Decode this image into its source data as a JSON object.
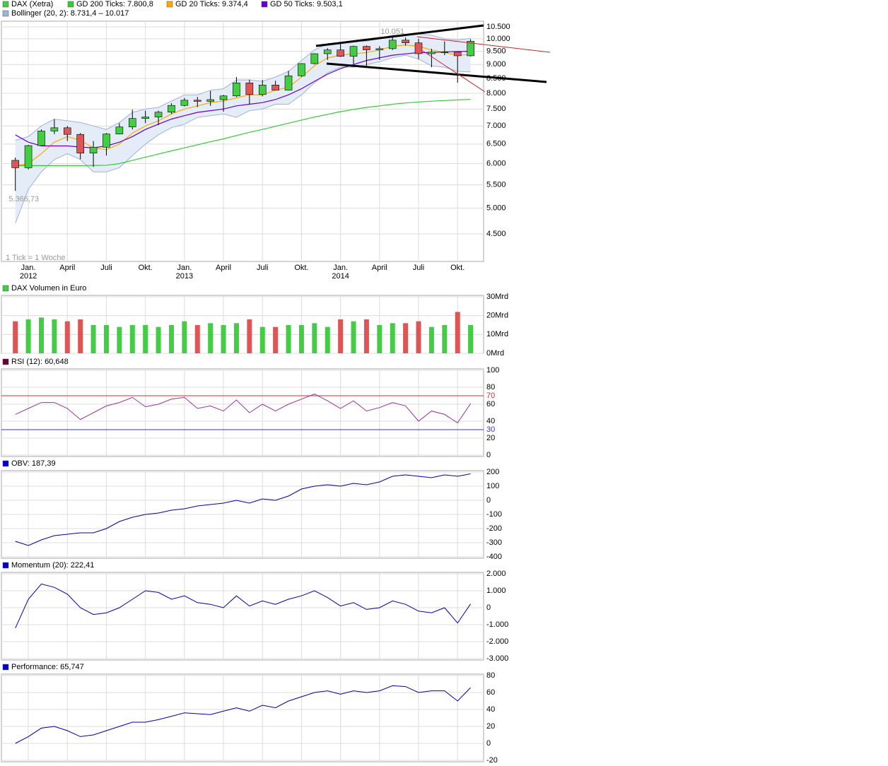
{
  "chart_data": [
    {
      "type": "candlestick",
      "name": "DAX (Xetra)",
      "up_color": "#44cc44",
      "down_color": "#dd5555",
      "categories": [
        null,
        "Jan.",
        null,
        null,
        "April",
        null,
        null,
        "Juli",
        null,
        null,
        "Okt.",
        null,
        null,
        "Jan.",
        null,
        null,
        "April",
        null,
        null,
        "Juli",
        null,
        null,
        "Okt.",
        null,
        null,
        "Jan.",
        null,
        null,
        "April",
        null,
        null,
        "Juli",
        null,
        null,
        "Okt.",
        null
      ],
      "x_sublabels": [
        null,
        "2012",
        null,
        null,
        null,
        null,
        null,
        null,
        null,
        null,
        null,
        null,
        null,
        "2013",
        null,
        null,
        null,
        null,
        null,
        null,
        null,
        null,
        null,
        null,
        null,
        "2014",
        null,
        null,
        null,
        null,
        null,
        null,
        null,
        null,
        null,
        null
      ],
      "xlim": [
        -1.07,
        36
      ],
      "ylim": [
        4020,
        10745
      ],
      "log_scale": true,
      "grid": true,
      "yticks": [
        {
          "value": 10500,
          "label": "10.500"
        },
        {
          "value": 10000,
          "label": "10.000"
        },
        {
          "value": 9500,
          "label": "9.500"
        },
        {
          "value": 9000,
          "label": "9.000"
        },
        {
          "value": 8500,
          "label": "8.500"
        },
        {
          "value": 8000,
          "label": "8.000"
        },
        {
          "value": 7500,
          "label": "7.500"
        },
        {
          "value": 7000,
          "label": "7.000"
        },
        {
          "value": 6500,
          "label": "6.500"
        },
        {
          "value": 6000,
          "label": "6.000"
        },
        {
          "value": 5500,
          "label": "5.500"
        },
        {
          "value": 5000,
          "label": "5.000"
        },
        {
          "value": 4500,
          "label": "4.500"
        }
      ],
      "open": [
        6080,
        5898,
        6458,
        6856,
        6947,
        6761,
        6264,
        6416,
        6772,
        6971,
        7216,
        7260,
        7405,
        7612,
        7776,
        7741,
        7795,
        7914,
        8348,
        7959,
        8276,
        8103,
        8594,
        9033,
        9406,
        9552,
        9306,
        9692,
        9556,
        9603,
        9943,
        9833,
        9407,
        9470,
        9474,
        9327
      ],
      "high": [
        6150,
        6480,
        6900,
        7195,
        7000,
        6800,
        6580,
        6800,
        7080,
        7480,
        7450,
        7450,
        7680,
        7850,
        7880,
        8080,
        7950,
        8550,
        8460,
        8450,
        8420,
        8770,
        9050,
        9420,
        9620,
        9800,
        9720,
        9730,
        9700,
        10051,
        10050,
        10000,
        9600,
        9890,
        9500,
        9980
      ],
      "low": [
        5366.73,
        5860,
        6450,
        6770,
        6580,
        6110,
        5920,
        6200,
        6760,
        6900,
        7080,
        7020,
        7350,
        7580,
        7560,
        7600,
        7420,
        7880,
        7650,
        7900,
        8100,
        8100,
        8560,
        9000,
        9170,
        9280,
        9020,
        8900,
        9170,
        9550,
        9720,
        9200,
        8900,
        9350,
        8355,
        9300
      ],
      "close": [
        5898,
        6458,
        6856,
        6947,
        6761,
        6264,
        6416,
        6772,
        6971,
        7216,
        7260,
        7405,
        7612,
        7776,
        7741,
        7795,
        7914,
        8348,
        7959,
        8276,
        8103,
        8594,
        9033,
        9406,
        9552,
        9306,
        9692,
        9556,
        9603,
        9943,
        9833,
        9407,
        9470,
        9474,
        9327,
        9900
      ],
      "series": [
        {
          "name": "GD 200 Ticks: 7.800,8",
          "color": "#33cc33",
          "values": [
            5950,
            5950,
            5950,
            5950,
            5950,
            5950,
            5955,
            5960,
            6000,
            6080,
            6160,
            6240,
            6320,
            6400,
            6480,
            6560,
            6640,
            6730,
            6820,
            6900,
            6990,
            7080,
            7170,
            7260,
            7340,
            7420,
            7490,
            7550,
            7600,
            7650,
            7690,
            7720,
            7745,
            7765,
            7785,
            7800.8
          ]
        },
        {
          "name": "GD 20 Ticks: 9.374,4",
          "color": "#ffaa00",
          "values": [
            5950,
            6000,
            6250,
            6550,
            6700,
            6600,
            6400,
            6350,
            6500,
            6800,
            7000,
            7150,
            7350,
            7500,
            7600,
            7700,
            7750,
            7850,
            7950,
            7950,
            8100,
            8200,
            8550,
            8950,
            9250,
            9350,
            9400,
            9450,
            9550,
            9700,
            9750,
            9700,
            9550,
            9450,
            9350,
            9374.4
          ]
        },
        {
          "name": "GD 50 Ticks: 9.503,1",
          "color": "#6600cc",
          "values": [
            6750,
            6550,
            6450,
            6450,
            6450,
            6420,
            6400,
            6450,
            6550,
            6700,
            6900,
            7050,
            7200,
            7300,
            7400,
            7450,
            7500,
            7600,
            7650,
            7700,
            7800,
            7950,
            8150,
            8400,
            8650,
            8850,
            9000,
            9150,
            9250,
            9350,
            9400,
            9450,
            9450,
            9480,
            9490,
            9503.1
          ]
        }
      ],
      "bands": {
        "name": "Bollinger (20, 2): 8.731,4 – 10.017",
        "color": "#9fb3d6",
        "upper": [
          6600,
          6700,
          7000,
          7200,
          7150,
          7100,
          7000,
          6900,
          7100,
          7400,
          7500,
          7550,
          7750,
          7950,
          7950,
          8100,
          8150,
          8450,
          8450,
          8400,
          8550,
          8750,
          9150,
          9550,
          9800,
          9800,
          9900,
          9900,
          10000,
          10150,
          10150,
          10200,
          10150,
          10000,
          9950,
          10017
        ],
        "lower": [
          4700,
          5400,
          5800,
          6100,
          6250,
          6100,
          5800,
          5800,
          5900,
          6200,
          6500,
          6750,
          6950,
          7050,
          7250,
          7300,
          7350,
          7250,
          7450,
          7500,
          7650,
          7650,
          7950,
          8350,
          8700,
          8900,
          8900,
          9000,
          9100,
          9250,
          9350,
          9200,
          8950,
          8900,
          8750,
          8731.4
        ]
      },
      "annotations": {
        "high_label": "10.051",
        "low_label": "5.366,73",
        "note": "1 Tick = 1 Woche"
      }
    },
    {
      "type": "bar",
      "title": "DAX Volumen in Euro",
      "color": "#44cc44",
      "values": [
        17,
        18,
        19,
        18,
        17,
        18,
        15,
        15,
        14,
        15,
        15,
        14,
        15,
        17,
        15,
        16,
        15,
        16,
        18,
        14,
        14,
        15,
        15,
        16,
        14,
        18,
        17,
        18,
        15,
        16,
        16,
        17,
        14,
        15,
        22,
        15
      ],
      "ylim": [
        0,
        30
      ],
      "yticks": [
        {
          "value": 0,
          "label": "0Mrd"
        },
        {
          "value": 10,
          "label": "10Mrd"
        },
        {
          "value": 20,
          "label": "20Mrd"
        },
        {
          "value": 30,
          "label": "30Mrd"
        }
      ]
    },
    {
      "type": "line",
      "title": "RSI (12): 60,648",
      "title_color": "#660033",
      "color": "#993399",
      "values": [
        48,
        55,
        62,
        62,
        55,
        42,
        50,
        58,
        62,
        68,
        57,
        60,
        66,
        68,
        55,
        58,
        52,
        65,
        50,
        60,
        52,
        60,
        66,
        72,
        64,
        55,
        64,
        52,
        56,
        62,
        58,
        40,
        52,
        48,
        38,
        60.648
      ],
      "ylim": [
        0,
        100
      ],
      "yticks": [
        0,
        20,
        40,
        60,
        80,
        100
      ],
      "reference_lines": [
        {
          "value": 70,
          "color": "#cc3333"
        },
        {
          "value": 30,
          "color": "#3333cc"
        }
      ]
    },
    {
      "type": "line",
      "title": "OBV: 187,39",
      "title_color": "#0000cc",
      "color": "#0000aa",
      "values": [
        -290,
        -320,
        -280,
        -250,
        -240,
        -230,
        -230,
        -200,
        -150,
        -120,
        -100,
        -90,
        -70,
        -60,
        -40,
        -30,
        -20,
        0,
        -20,
        10,
        0,
        30,
        80,
        100,
        110,
        100,
        120,
        110,
        130,
        170,
        180,
        170,
        160,
        180,
        170,
        187.39
      ],
      "ylim": [
        -400,
        200
      ],
      "yticks": [
        -400,
        -300,
        -200,
        -100,
        0,
        100,
        200
      ]
    },
    {
      "type": "line",
      "title": "Momentum (20): 222,41",
      "title_color": "#0000cc",
      "color": "#0000aa",
      "values": [
        -1200,
        500,
        1400,
        1200,
        800,
        0,
        -400,
        -300,
        0,
        500,
        1000,
        900,
        500,
        700,
        300,
        200,
        0,
        700,
        100,
        400,
        200,
        500,
        700,
        1000,
        600,
        100,
        300,
        -100,
        0,
        400,
        200,
        -200,
        -300,
        0,
        -900,
        222.41
      ],
      "ylim": [
        -3000,
        2000
      ],
      "yticks": [
        {
          "value": -3000,
          "label": "-3.000"
        },
        {
          "value": -2000,
          "label": "-2.000"
        },
        {
          "value": -1000,
          "label": "-1.000"
        },
        0,
        {
          "value": 1000,
          "label": "1.000"
        },
        {
          "value": 2000,
          "label": "2.000"
        }
      ]
    },
    {
      "type": "line",
      "title": "Performance: 65,747",
      "title_color": "#0000cc",
      "color": "#0000aa",
      "values": [
        0,
        8,
        18,
        20,
        15,
        8,
        10,
        15,
        20,
        25,
        25,
        28,
        32,
        36,
        35,
        34,
        38,
        42,
        38,
        45,
        42,
        50,
        55,
        60,
        62,
        58,
        62,
        60,
        62,
        68,
        67,
        60,
        62,
        62,
        50,
        65.747
      ],
      "ylim": [
        -20,
        80
      ],
      "yticks": [
        -20,
        0,
        20,
        40,
        60,
        80
      ]
    }
  ]
}
